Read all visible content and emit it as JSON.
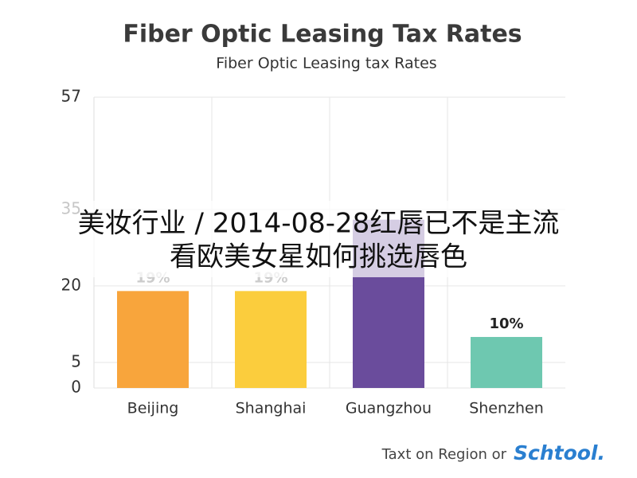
{
  "chart_data": {
    "type": "bar",
    "title": "Fiber Optic Leasing Tax Rates",
    "subtitle": "Fiber Optic Leasing tax Rates",
    "categories": [
      "Beijing",
      "Shanghai",
      "Guangzhou",
      "Shenzhen"
    ],
    "values": [
      19,
      19,
      33,
      10
    ],
    "value_labels": [
      "19%",
      "19%",
      null,
      "10%"
    ],
    "colors": [
      "#f8a53c",
      "#fbcd3d",
      "#6a4c9c",
      "#6ec8b0"
    ],
    "ylim": [
      0,
      57
    ],
    "yticks": [
      0,
      5,
      20,
      35,
      57
    ],
    "grid": true
  },
  "footer": {
    "text": "Taxt on Region or",
    "brand": "Schtool."
  },
  "overlay_text": [
    "美妆行业 / 2014-08-28红唇已不是主流",
    "看欧美女星如何挑选唇色"
  ]
}
